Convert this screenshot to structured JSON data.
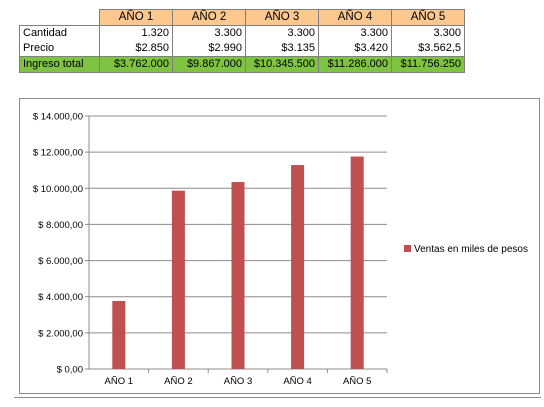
{
  "table": {
    "headers": [
      "AÑO 1",
      "AÑO 2",
      "AÑO 3",
      "AÑO 4",
      "AÑO 5"
    ],
    "rows": [
      {
        "label": "Cantidad",
        "values": [
          "1.320",
          "3.300",
          "3.300",
          "3.300",
          "3.300"
        ]
      },
      {
        "label": "Precio",
        "values": [
          "$2.850",
          "$2.990",
          "$3.135",
          "$3.420",
          "$3.562,5"
        ]
      },
      {
        "label": "Ingreso total",
        "values": [
          "$3.762.000",
          "$9.867.000",
          "$10.345.500",
          "$11.286.000",
          "$11.756.250"
        ]
      }
    ],
    "colors": {
      "header_bg": "#fdc88e",
      "total_bg": "#7ec342"
    }
  },
  "chart_data": {
    "type": "bar",
    "categories": [
      "AÑO 1",
      "AÑO 2",
      "AÑO 3",
      "AÑO 4",
      "AÑO 5"
    ],
    "series": [
      {
        "name": "Ventas en miles de pesos",
        "values": [
          3762,
          9867,
          10345.5,
          11286,
          11756.25
        ],
        "color": "#c0504d"
      }
    ],
    "ylim": [
      0,
      14000
    ],
    "yticks": [
      0,
      2000,
      4000,
      6000,
      8000,
      10000,
      12000,
      14000
    ],
    "ytick_labels": [
      "$ 0,00",
      "$ 2.000,00",
      "$ 4.000,00",
      "$ 6.000,00",
      "$ 8.000,00",
      "$ 10.000,00",
      "$ 12.000,00",
      "$ 14.000,00"
    ],
    "grid": true,
    "legend_position": "right",
    "title": "",
    "xlabel": "",
    "ylabel": ""
  }
}
